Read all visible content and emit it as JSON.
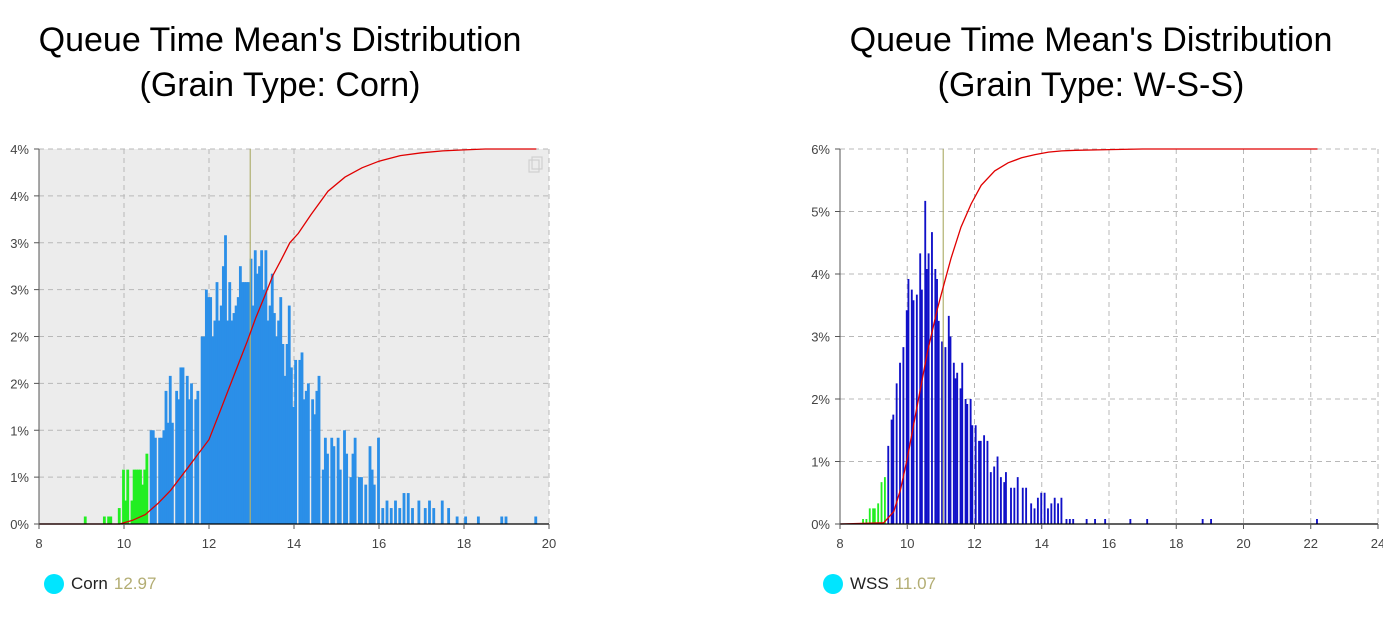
{
  "panels": [
    {
      "title_line1": "Queue Time Mean's Distribution",
      "title_line2": "(Grain Type: Corn)",
      "legend_name": "Corn",
      "legend_value": "12.97",
      "legend_color": "#00e5ff",
      "value_color": "#b3ad73"
    },
    {
      "title_line1": "Queue Time Mean's Distribution",
      "title_line2": "(Grain Type: W-S-S)",
      "legend_name": "WSS",
      "legend_value": "11.07",
      "legend_color": "#00e5ff",
      "value_color": "#b3ad73"
    }
  ],
  "chart_data": [
    {
      "type": "bar",
      "name": "Corn",
      "xlim": [
        8,
        20
      ],
      "x_ticks": [
        8,
        10,
        12,
        14,
        16,
        18,
        20
      ],
      "ylim": [
        0,
        4
      ],
      "y_ticks": [
        0,
        0.5,
        1,
        1.5,
        2,
        2.5,
        3,
        3.5,
        4
      ],
      "y_tick_labels": [
        "0%",
        "1%",
        "1%",
        "2%",
        "2%",
        "3%",
        "3%",
        "4%",
        "4%"
      ],
      "background": "#ececec",
      "grid": true,
      "mean": 12.97,
      "mean_line_color": "#b0b070",
      "cdf_color": "#e00000",
      "tail_threshold": 10.6,
      "tail_color": "#22ee22",
      "bar_color": "#2b8fe8",
      "bar_width": 0.09,
      "x": [
        9.1,
        9.55,
        9.65,
        9.7,
        9.9,
        10.0,
        10.05,
        10.1,
        10.2,
        10.25,
        10.3,
        10.35,
        10.4,
        10.45,
        10.5,
        10.55,
        10.65,
        10.7,
        10.75,
        10.85,
        10.9,
        10.95,
        11.0,
        11.05,
        11.1,
        11.15,
        11.25,
        11.3,
        11.35,
        11.4,
        11.5,
        11.55,
        11.6,
        11.7,
        11.75,
        11.85,
        11.9,
        11.95,
        12.0,
        12.05,
        12.1,
        12.15,
        12.2,
        12.25,
        12.3,
        12.35,
        12.4,
        12.45,
        12.5,
        12.55,
        12.6,
        12.65,
        12.7,
        12.75,
        12.8,
        12.85,
        12.9,
        12.95,
        13.0,
        13.05,
        13.1,
        13.15,
        13.2,
        13.25,
        13.3,
        13.35,
        13.4,
        13.45,
        13.5,
        13.55,
        13.6,
        13.65,
        13.7,
        13.75,
        13.8,
        13.85,
        13.9,
        13.95,
        14.0,
        14.05,
        14.15,
        14.2,
        14.25,
        14.3,
        14.35,
        14.45,
        14.5,
        14.55,
        14.6,
        14.7,
        14.75,
        14.8,
        14.9,
        14.95,
        15.05,
        15.1,
        15.2,
        15.25,
        15.35,
        15.4,
        15.45,
        15.55,
        15.6,
        15.7,
        15.8,
        15.85,
        15.9,
        16.0,
        16.1,
        16.2,
        16.3,
        16.4,
        16.5,
        16.6,
        16.7,
        16.8,
        16.95,
        17.1,
        17.2,
        17.3,
        17.5,
        17.65,
        17.85,
        18.05,
        18.35,
        18.9,
        19.0,
        19.7
      ],
      "values": [
        0.08,
        0.08,
        0.08,
        0.08,
        0.17,
        0.58,
        0.25,
        0.58,
        0.25,
        0.58,
        0.58,
        0.58,
        0.58,
        0.42,
        0.58,
        0.75,
        1.0,
        1.0,
        0.92,
        0.92,
        0.92,
        1.0,
        1.42,
        1.08,
        1.58,
        1.08,
        1.42,
        1.33,
        1.67,
        1.67,
        1.58,
        1.33,
        1.5,
        1.33,
        1.42,
        2.0,
        2.0,
        2.5,
        2.42,
        2.42,
        2.0,
        2.17,
        2.58,
        2.17,
        2.33,
        2.75,
        3.08,
        2.17,
        2.58,
        2.17,
        2.25,
        2.33,
        2.42,
        2.75,
        2.58,
        2.58,
        2.58,
        2.58,
        2.83,
        2.33,
        2.92,
        2.67,
        2.75,
        2.92,
        2.5,
        2.92,
        2.17,
        2.33,
        2.67,
        2.25,
        2.0,
        2.17,
        2.42,
        1.92,
        1.58,
        1.92,
        2.33,
        1.67,
        1.25,
        1.75,
        1.75,
        1.83,
        1.33,
        1.42,
        1.5,
        1.33,
        1.17,
        1.42,
        1.58,
        0.58,
        0.92,
        0.75,
        0.92,
        0.83,
        0.92,
        0.58,
        1.0,
        0.75,
        0.5,
        0.75,
        0.92,
        0.5,
        0.5,
        0.42,
        0.83,
        0.58,
        0.42,
        0.92,
        0.17,
        0.25,
        0.17,
        0.25,
        0.17,
        0.33,
        0.33,
        0.17,
        0.25,
        0.17,
        0.25,
        0.17,
        0.25,
        0.17,
        0.08,
        0.08,
        0.08,
        0.08,
        0.08,
        0.08
      ],
      "cdf": {
        "x": [
          8.0,
          9.9,
          10.2,
          10.5,
          10.8,
          11.1,
          11.5,
          11.8,
          12.0,
          12.3,
          12.6,
          12.9,
          13.1,
          13.3,
          13.5,
          13.7,
          13.9,
          14.1,
          14.4,
          14.8,
          15.2,
          15.6,
          16.0,
          16.5,
          17.0,
          17.5,
          18.0,
          18.5,
          19.0,
          19.7
        ],
        "values": [
          0,
          0.0,
          0.04,
          0.1,
          0.22,
          0.36,
          0.6,
          0.78,
          0.9,
          1.25,
          1.6,
          1.95,
          2.2,
          2.42,
          2.65,
          2.82,
          3.0,
          3.1,
          3.3,
          3.55,
          3.7,
          3.8,
          3.87,
          3.93,
          3.96,
          3.98,
          3.99,
          4.0,
          4.0,
          4.0
        ]
      }
    },
    {
      "type": "bar",
      "name": "WSS",
      "xlim": [
        8,
        24
      ],
      "x_ticks": [
        8,
        10,
        12,
        14,
        16,
        18,
        20,
        22,
        24
      ],
      "ylim": [
        0,
        6
      ],
      "y_ticks": [
        0,
        1,
        2,
        3,
        4,
        5,
        6
      ],
      "y_tick_labels": [
        "0%",
        "1%",
        "2%",
        "3%",
        "4%",
        "5%",
        "6%"
      ],
      "background": "#ffffff",
      "grid": true,
      "mean": 11.07,
      "mean_line_color": "#b0b070",
      "cdf_color": "#e00000",
      "tail_threshold": 9.4,
      "tail_color": "#22ee22",
      "bar_color": "#1010c8",
      "bar_width": 0.085,
      "x": [
        8.7,
        8.8,
        8.9,
        9.0,
        9.05,
        9.15,
        9.25,
        9.35,
        9.45,
        9.55,
        9.6,
        9.7,
        9.8,
        9.9,
        10.0,
        10.05,
        10.15,
        10.2,
        10.3,
        10.4,
        10.45,
        10.55,
        10.6,
        10.65,
        10.75,
        10.85,
        10.9,
        10.95,
        11.05,
        11.15,
        11.25,
        11.3,
        11.4,
        11.45,
        11.5,
        11.6,
        11.65,
        11.75,
        11.8,
        11.9,
        11.95,
        12.05,
        12.15,
        12.2,
        12.3,
        12.4,
        12.5,
        12.6,
        12.7,
        12.8,
        12.9,
        12.95,
        13.1,
        13.2,
        13.3,
        13.45,
        13.55,
        13.7,
        13.8,
        13.9,
        14.0,
        14.1,
        14.2,
        14.3,
        14.4,
        14.5,
        14.6,
        14.75,
        14.85,
        14.95,
        15.35,
        15.6,
        15.9,
        16.65,
        17.15,
        18.8,
        19.05,
        22.2
      ],
      "values": [
        0.08,
        0.08,
        0.25,
        0.25,
        0.25,
        0.33,
        0.67,
        0.75,
        1.25,
        1.67,
        1.75,
        2.25,
        2.58,
        2.83,
        3.42,
        3.92,
        3.75,
        3.58,
        3.67,
        4.33,
        3.75,
        5.17,
        4.08,
        4.33,
        4.67,
        4.08,
        3.92,
        3.25,
        2.92,
        2.83,
        3.33,
        3.0,
        2.58,
        2.33,
        2.42,
        2.17,
        2.58,
        2.0,
        1.92,
        2.0,
        1.58,
        1.58,
        1.33,
        1.33,
        1.42,
        1.33,
        0.83,
        0.92,
        1.08,
        0.75,
        0.67,
        0.83,
        0.58,
        0.58,
        0.75,
        0.58,
        0.58,
        0.33,
        0.25,
        0.42,
        0.5,
        0.5,
        0.25,
        0.33,
        0.42,
        0.33,
        0.42,
        0.08,
        0.08,
        0.08,
        0.08,
        0.08,
        0.08,
        0.08,
        0.08,
        0.08,
        0.08,
        0.08
      ],
      "cdf": {
        "x": [
          8.0,
          9.3,
          9.6,
          9.8,
          10.0,
          10.3,
          10.6,
          10.9,
          11.1,
          11.3,
          11.6,
          11.9,
          12.2,
          12.6,
          13.0,
          13.4,
          13.8,
          14.2,
          14.6,
          15.0,
          16.0,
          17.0,
          18.0,
          20.0,
          22.2
        ],
        "values": [
          0,
          0.02,
          0.2,
          0.55,
          1.05,
          1.9,
          2.75,
          3.45,
          3.85,
          4.25,
          4.75,
          5.12,
          5.42,
          5.65,
          5.78,
          5.86,
          5.91,
          5.95,
          5.97,
          5.98,
          5.99,
          6.0,
          6.0,
          6.0,
          6.0
        ]
      }
    }
  ]
}
